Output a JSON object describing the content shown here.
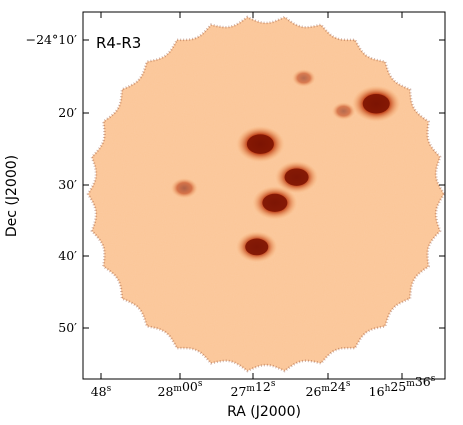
{
  "figure": {
    "panel_label": "R4-R3",
    "xlabel": "RA (J2000)",
    "ylabel": "Dec (J2000)",
    "colormap": {
      "low": "#ffe3c4",
      "mid": "#f7a35c",
      "high": "#7a1000"
    },
    "x_ticks": [
      {
        "main": "48",
        "sup": "s"
      },
      {
        "main": "28",
        "sup": "m",
        "main2": "00",
        "sup2": "s"
      },
      {
        "main": "27",
        "sup": "m",
        "main2": "12",
        "sup2": "s"
      },
      {
        "main": "26",
        "sup": "m",
        "main2": "24",
        "sup2": "s"
      },
      {
        "main": "16",
        "sup": "h",
        "main2": "25",
        "sup2": "m",
        "main3": "36",
        "sup3": "s"
      }
    ],
    "y_ticks": [
      {
        "text": "−24°10′"
      },
      {
        "text": "20′"
      },
      {
        "text": "30′"
      },
      {
        "text": "40′"
      },
      {
        "text": "50′"
      }
    ],
    "sources": [
      {
        "id": "src-1",
        "ra_frac": 0.81,
        "dec_frac": 0.25,
        "intensity": 1.0
      },
      {
        "id": "src-2",
        "ra_frac": 0.49,
        "dec_frac": 0.36,
        "intensity": 1.0
      },
      {
        "id": "src-3",
        "ra_frac": 0.53,
        "dec_frac": 0.52,
        "intensity": 0.9
      },
      {
        "id": "src-4",
        "ra_frac": 0.59,
        "dec_frac": 0.45,
        "intensity": 0.85
      },
      {
        "id": "src-5",
        "ra_frac": 0.48,
        "dec_frac": 0.64,
        "intensity": 0.8
      },
      {
        "id": "src-6",
        "ra_frac": 0.28,
        "dec_frac": 0.48,
        "intensity": 0.4
      },
      {
        "id": "src-7",
        "ra_frac": 0.61,
        "dec_frac": 0.18,
        "intensity": 0.3
      },
      {
        "id": "src-8",
        "ra_frac": 0.72,
        "dec_frac": 0.27,
        "intensity": 0.3
      }
    ]
  }
}
